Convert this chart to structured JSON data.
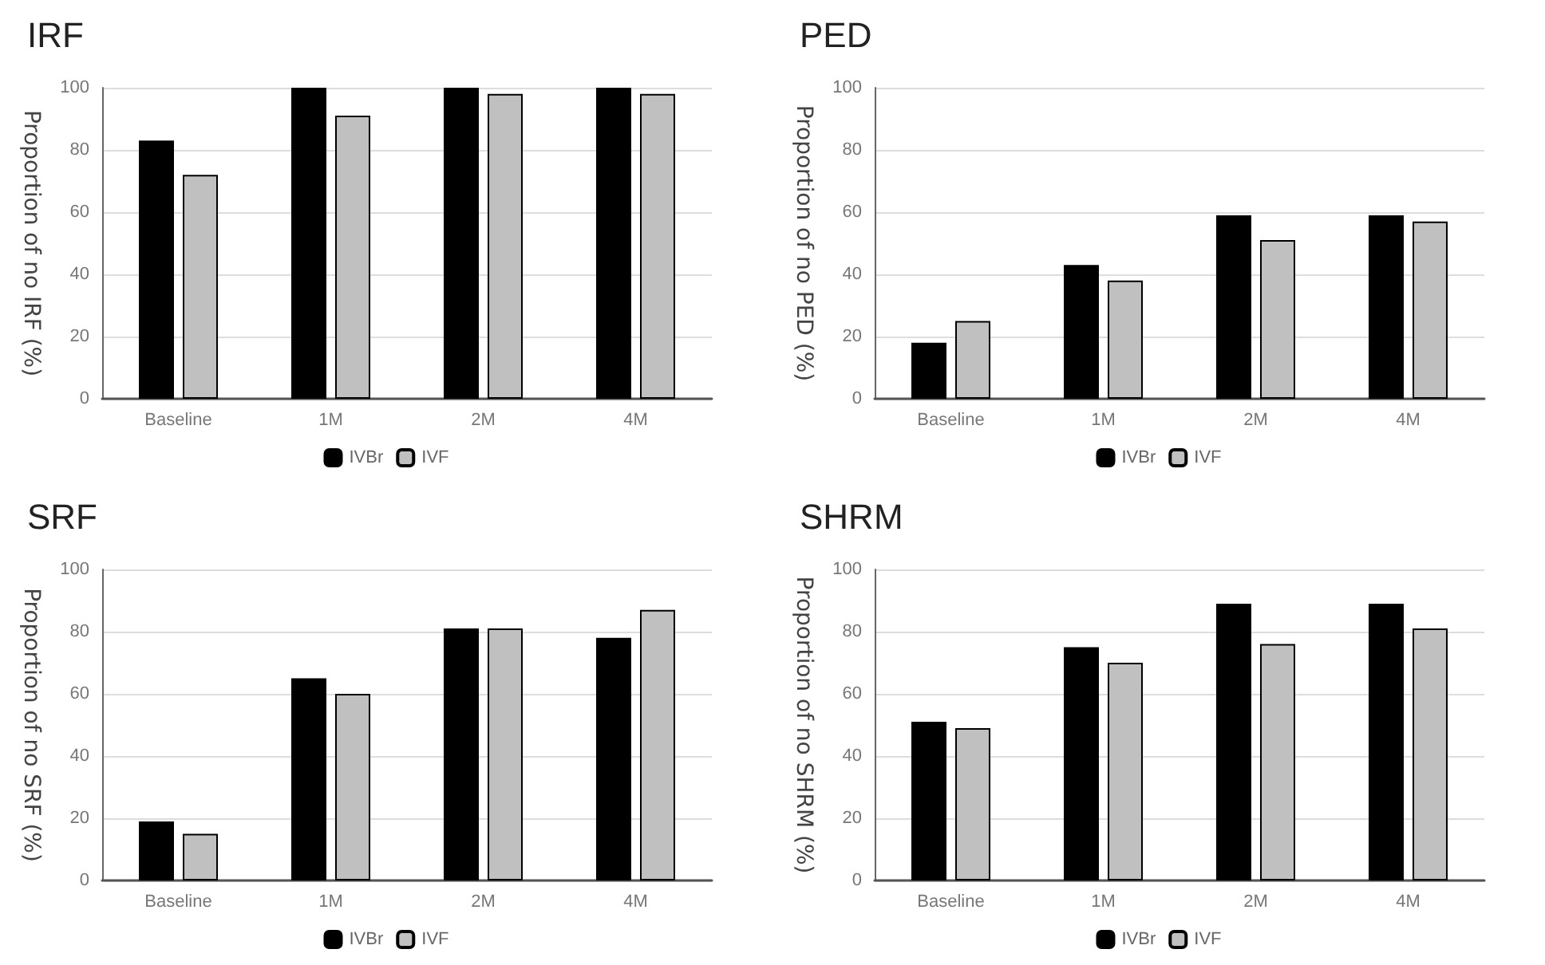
{
  "chart_data": [
    {
      "type": "bar",
      "title": "IRF",
      "ylabel": "Proportion of no IRF (%)",
      "categories": [
        "Baseline",
        "1M",
        "2M",
        "4M"
      ],
      "series": [
        {
          "name": "IVBr",
          "color": "#000000",
          "values": [
            83,
            100,
            100,
            100
          ]
        },
        {
          "name": "IVF",
          "color": "#c0c0c0",
          "values": [
            72,
            91,
            98,
            98
          ]
        }
      ],
      "ylim": [
        0,
        100
      ],
      "yticks": [
        0,
        20,
        40,
        60,
        80,
        100
      ],
      "grid": "y",
      "legend": "bottom"
    },
    {
      "type": "bar",
      "title": "PED",
      "ylabel": "Proportion of no PED (%)",
      "categories": [
        "Baseline",
        "1M",
        "2M",
        "4M"
      ],
      "series": [
        {
          "name": "IVBr",
          "color": "#000000",
          "values": [
            18,
            43,
            59,
            59
          ]
        },
        {
          "name": "IVF",
          "color": "#c0c0c0",
          "values": [
            25,
            38,
            51,
            57
          ]
        }
      ],
      "ylim": [
        0,
        100
      ],
      "yticks": [
        0,
        20,
        40,
        60,
        80,
        100
      ],
      "grid": "y",
      "legend": "bottom"
    },
    {
      "type": "bar",
      "title": "SRF",
      "ylabel": "Proportion of no SRF (%)",
      "categories": [
        "Baseline",
        "1M",
        "2M",
        "4M"
      ],
      "series": [
        {
          "name": "IVBr",
          "color": "#000000",
          "values": [
            19,
            65,
            81,
            78
          ]
        },
        {
          "name": "IVF",
          "color": "#c0c0c0",
          "values": [
            15,
            60,
            81,
            87
          ]
        }
      ],
      "ylim": [
        0,
        100
      ],
      "yticks": [
        0,
        20,
        40,
        60,
        80,
        100
      ],
      "grid": "y",
      "legend": "bottom"
    },
    {
      "type": "bar",
      "title": "SHRM",
      "ylabel": "Proportion of no SHRM (%)",
      "categories": [
        "Baseline",
        "1M",
        "2M",
        "4M"
      ],
      "series": [
        {
          "name": "IVBr",
          "color": "#000000",
          "values": [
            51,
            75,
            89,
            89
          ]
        },
        {
          "name": "IVF",
          "color": "#c0c0c0",
          "values": [
            49,
            70,
            76,
            81
          ]
        }
      ],
      "ylim": [
        0,
        100
      ],
      "yticks": [
        0,
        20,
        40,
        60,
        80,
        100
      ],
      "grid": "y",
      "legend": "bottom"
    }
  ]
}
